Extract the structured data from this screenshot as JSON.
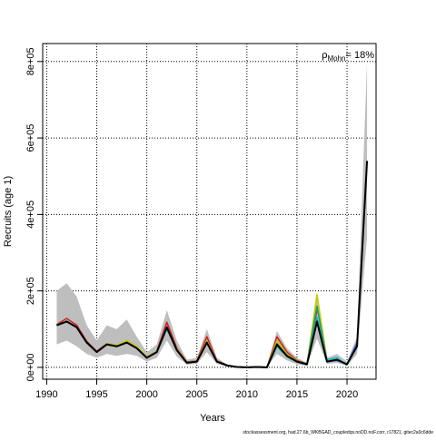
{
  "chart_data": {
    "type": "line",
    "xlabel": "Years",
    "ylabel": "Recruits (age 1)",
    "annotation": {
      "symbol": "ρ",
      "subscript": "Mohn",
      "text": "= 18%"
    },
    "footer": "stockassessment.org, had.27.6b_WKBGAD_coupledqs.noDD.noF.corr, r17821, gitec2a0c6dde",
    "xlim": [
      1989.6,
      2022.9
    ],
    "xticks": [
      1990,
      1995,
      2000,
      2005,
      2010,
      2015,
      2020
    ],
    "ylim": [
      -31000,
      847000
    ],
    "yticks": [
      {
        "value": 0,
        "label": "0e+00"
      },
      {
        "value": 200000,
        "label": "2e+05"
      },
      {
        "value": 400000,
        "label": "4e+05"
      },
      {
        "value": 600000,
        "label": "6e+05"
      },
      {
        "value": 800000,
        "label": "8e+05"
      }
    ],
    "grid": true,
    "x": [
      1991,
      1992,
      1993,
      1994,
      1995,
      1996,
      1997,
      1998,
      1999,
      2000,
      2001,
      2002,
      2003,
      2004,
      2005,
      2006,
      2007,
      2008,
      2009,
      2010,
      2011,
      2012,
      2013,
      2014,
      2015,
      2016,
      2017,
      2018,
      2019,
      2020,
      2021,
      2022
    ],
    "band": {
      "color": "#bebebe",
      "upper": [
        200000,
        220000,
        185000,
        110000,
        70000,
        110000,
        100000,
        125000,
        80000,
        40000,
        60000,
        150000,
        70000,
        20000,
        25000,
        100000,
        25000,
        8000,
        2000,
        1000,
        3000,
        2000,
        95000,
        50000,
        25000,
        12000,
        195000,
        25000,
        35000,
        15000,
        80000,
        800000
      ],
      "lower": [
        60000,
        70000,
        55000,
        35000,
        25000,
        35000,
        30000,
        35000,
        30000,
        15000,
        25000,
        70000,
        28000,
        7000,
        9000,
        40000,
        9000,
        3000,
        500,
        0,
        0,
        0,
        35000,
        18000,
        8000,
        4000,
        75000,
        9000,
        12000,
        4000,
        35000,
        340000
      ]
    },
    "series": [
      {
        "color": "#cc2222",
        "values": [
          112000,
          128000,
          110000,
          68000,
          42000,
          62000,
          57000,
          66000,
          52000,
          27000,
          42000,
          118000,
          50000,
          14000,
          17000,
          80000,
          17000,
          6000,
          1000,
          0,
          1000,
          0,
          80000,
          40000,
          18000,
          9000,
          150000,
          null,
          null,
          null,
          null,
          null
        ]
      },
      {
        "color": "#c8c800",
        "values": [
          112000,
          118000,
          105000,
          64000,
          40000,
          62000,
          58000,
          70000,
          55000,
          27000,
          42000,
          100000,
          48000,
          13000,
          16000,
          70000,
          16000,
          5000,
          1000,
          0,
          1000,
          0,
          70000,
          35000,
          16000,
          8000,
          190000,
          20000,
          null,
          null,
          null,
          null
        ]
      },
      {
        "color": "#1b9e77",
        "values": [
          110000,
          120000,
          104000,
          64000,
          40000,
          60000,
          55000,
          65000,
          50000,
          25000,
          40000,
          102000,
          45000,
          12000,
          15000,
          66000,
          15000,
          5000,
          1000,
          0,
          1000,
          0,
          62000,
          30000,
          15000,
          8000,
          160000,
          15000,
          20000,
          null,
          null,
          null
        ]
      },
      {
        "color": "#00bfc4",
        "values": [
          110000,
          120000,
          104000,
          64000,
          40000,
          60000,
          55000,
          65000,
          50000,
          25000,
          40000,
          100000,
          45000,
          12000,
          15000,
          64000,
          15000,
          5000,
          1000,
          0,
          1000,
          0,
          55000,
          28000,
          14000,
          7000,
          130000,
          20000,
          25000,
          5000,
          null,
          null
        ]
      },
      {
        "color": "#3a5fcd",
        "values": [
          110000,
          119000,
          104000,
          64000,
          40000,
          60000,
          55000,
          64000,
          50000,
          25000,
          40000,
          103000,
          45000,
          12000,
          15000,
          64000,
          15000,
          5000,
          1000,
          0,
          1000,
          0,
          58000,
          29000,
          15000,
          8000,
          118000,
          15000,
          18000,
          8000,
          65000,
          null
        ]
      },
      {
        "color": "#000000",
        "values": [
          110000,
          120000,
          105000,
          65000,
          40000,
          60000,
          55000,
          65000,
          50000,
          25000,
          40000,
          105000,
          45000,
          12000,
          15000,
          65000,
          15000,
          5000,
          1000,
          0,
          1000,
          0,
          60000,
          30000,
          15000,
          8000,
          120000,
          15000,
          20000,
          8000,
          55000,
          540000
        ]
      }
    ]
  }
}
